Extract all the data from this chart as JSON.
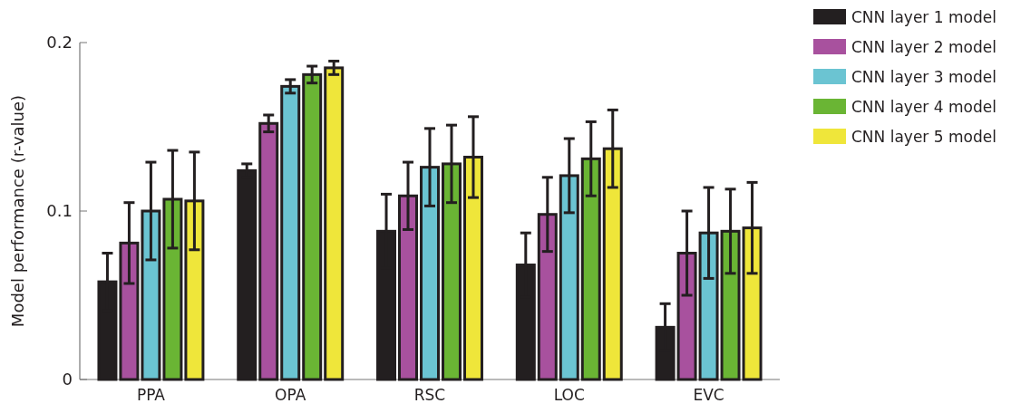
{
  "chart_data": {
    "type": "bar",
    "ylabel": "Model performance (r-value)",
    "categories": [
      "PPA",
      "OPA",
      "RSC",
      "LOC",
      "EVC"
    ],
    "ylim": [
      0,
      0.2
    ],
    "yticks": [
      0,
      0.1,
      0.2
    ],
    "legend": "top right",
    "grid": false,
    "series": [
      {
        "name": "CNN layer 1 model",
        "color": "#231f20",
        "values": [
          0.058,
          0.124,
          0.088,
          0.068,
          0.031
        ],
        "errors": [
          0.017,
          0.004,
          0.022,
          0.019,
          0.014
        ]
      },
      {
        "name": "CNN layer 2 model",
        "color": "#a8519e",
        "values": [
          0.081,
          0.152,
          0.109,
          0.098,
          0.075
        ],
        "errors": [
          0.024,
          0.005,
          0.02,
          0.022,
          0.025
        ]
      },
      {
        "name": "CNN layer 3 model",
        "color": "#6bc4d2",
        "values": [
          0.1,
          0.174,
          0.126,
          0.121,
          0.087
        ],
        "errors": [
          0.029,
          0.004,
          0.023,
          0.022,
          0.027
        ]
      },
      {
        "name": "CNN layer 4 model",
        "color": "#6ab534",
        "values": [
          0.107,
          0.181,
          0.128,
          0.131,
          0.088
        ],
        "errors": [
          0.029,
          0.005,
          0.023,
          0.022,
          0.025
        ]
      },
      {
        "name": "CNN layer 5 model",
        "color": "#efe63a",
        "values": [
          0.106,
          0.185,
          0.132,
          0.137,
          0.09
        ],
        "errors": [
          0.029,
          0.004,
          0.024,
          0.023,
          0.027
        ]
      }
    ]
  }
}
